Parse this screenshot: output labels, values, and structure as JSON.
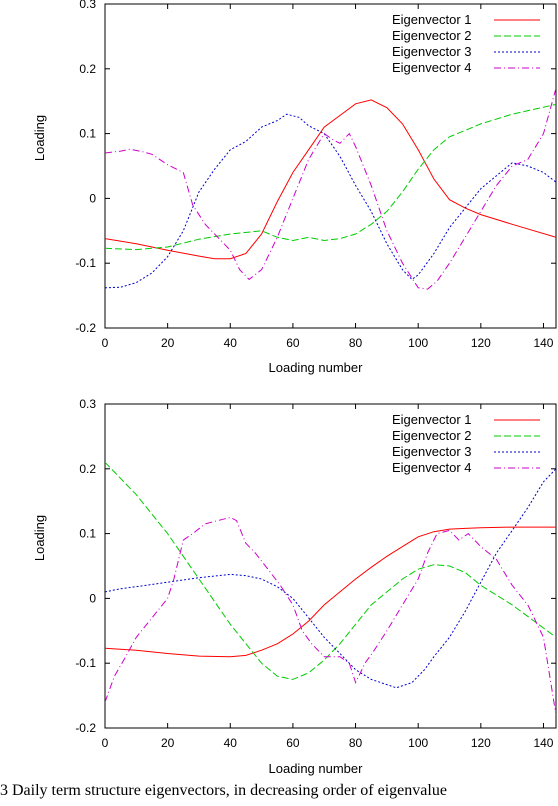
{
  "caption": "3    Daily term structure eigenvectors, in decreasing order of eigenvalue",
  "chart_data": [
    {
      "type": "line",
      "xlabel": "Loading number",
      "ylabel": "Loading",
      "xlim": [
        0,
        144
      ],
      "ylim": [
        -0.2,
        0.3
      ],
      "xticks": [
        0,
        20,
        40,
        60,
        80,
        100,
        120,
        140
      ],
      "yticks": [
        -0.2,
        -0.1,
        0,
        0.1,
        0.2,
        0.3
      ],
      "ytick_labels": [
        "-0.2",
        "-0.1",
        "0",
        "0.1",
        "0.2",
        "0.3"
      ],
      "legend_position": "top-right",
      "series": [
        {
          "name": "Eigenvector 1",
          "color": "#ff0000",
          "dash": "solid",
          "x": [
            0,
            10,
            20,
            30,
            35,
            40,
            45,
            50,
            55,
            60,
            65,
            70,
            75,
            80,
            85,
            90,
            95,
            100,
            105,
            110,
            115,
            120,
            130,
            144
          ],
          "y": [
            -0.062,
            -0.07,
            -0.08,
            -0.089,
            -0.093,
            -0.093,
            -0.085,
            -0.055,
            -0.005,
            0.04,
            0.075,
            0.11,
            0.128,
            0.146,
            0.152,
            0.14,
            0.115,
            0.075,
            0.03,
            -0.002,
            -0.015,
            -0.025,
            -0.04,
            -0.06
          ]
        },
        {
          "name": "Eigenvector 2",
          "color": "#00cc00",
          "dash": "dash",
          "x": [
            0,
            10,
            20,
            30,
            40,
            50,
            55,
            60,
            65,
            70,
            75,
            80,
            85,
            90,
            95,
            100,
            105,
            110,
            115,
            120,
            130,
            144
          ],
          "y": [
            -0.077,
            -0.079,
            -0.075,
            -0.063,
            -0.055,
            -0.05,
            -0.06,
            -0.065,
            -0.06,
            -0.065,
            -0.062,
            -0.055,
            -0.04,
            -0.02,
            0.01,
            0.045,
            0.075,
            0.095,
            0.105,
            0.115,
            0.13,
            0.145
          ]
        },
        {
          "name": "Eigenvector 3",
          "color": "#0000cc",
          "dash": "dot",
          "x": [
            0,
            5,
            10,
            15,
            20,
            25,
            30,
            35,
            40,
            45,
            50,
            55,
            58,
            62,
            65,
            70,
            75,
            80,
            85,
            90,
            95,
            98,
            100,
            105,
            110,
            115,
            120,
            125,
            130,
            135,
            140,
            144
          ],
          "y": [
            -0.138,
            -0.137,
            -0.13,
            -0.115,
            -0.09,
            -0.05,
            0.01,
            0.045,
            0.075,
            0.088,
            0.11,
            0.12,
            0.13,
            0.125,
            0.112,
            0.1,
            0.065,
            0.02,
            -0.02,
            -0.07,
            -0.11,
            -0.125,
            -0.118,
            -0.085,
            -0.045,
            -0.015,
            0.015,
            0.035,
            0.055,
            0.05,
            0.04,
            0.025
          ]
        },
        {
          "name": "Eigenvector 4",
          "color": "#cc00cc",
          "dash": "dashdot",
          "x": [
            0,
            5,
            8,
            12,
            15,
            20,
            25,
            28,
            32,
            36,
            40,
            43,
            46,
            50,
            55,
            60,
            65,
            70,
            73,
            75,
            78,
            80,
            85,
            90,
            95,
            100,
            103,
            106,
            110,
            115,
            120,
            125,
            130,
            135,
            140,
            144
          ],
          "y": [
            0.07,
            0.073,
            0.076,
            0.072,
            0.068,
            0.052,
            0.04,
            -0.01,
            -0.04,
            -0.06,
            -0.08,
            -0.11,
            -0.125,
            -0.11,
            -0.06,
            0.0,
            0.06,
            0.1,
            0.09,
            0.085,
            0.1,
            0.08,
            0.02,
            -0.05,
            -0.1,
            -0.138,
            -0.14,
            -0.128,
            -0.1,
            -0.06,
            -0.02,
            0.02,
            0.05,
            0.06,
            0.1,
            0.17
          ]
        }
      ]
    },
    {
      "type": "line",
      "xlabel": "Loading number",
      "ylabel": "Loading",
      "xlim": [
        0,
        144
      ],
      "ylim": [
        -0.2,
        0.3
      ],
      "xticks": [
        0,
        20,
        40,
        60,
        80,
        100,
        120,
        140
      ],
      "yticks": [
        -0.2,
        -0.1,
        0,
        0.1,
        0.2,
        0.3
      ],
      "ytick_labels": [
        "-0.2",
        "-0.1",
        "0",
        "0.1",
        "0.2",
        "0.3"
      ],
      "legend_position": "top-right",
      "series": [
        {
          "name": "Eigenvector 1",
          "color": "#ff0000",
          "dash": "solid",
          "x": [
            0,
            10,
            20,
            30,
            40,
            45,
            50,
            55,
            60,
            65,
            70,
            75,
            80,
            85,
            90,
            95,
            100,
            105,
            110,
            115,
            120,
            130,
            144
          ],
          "y": [
            -0.077,
            -0.08,
            -0.085,
            -0.089,
            -0.09,
            -0.088,
            -0.08,
            -0.07,
            -0.055,
            -0.035,
            -0.01,
            0.01,
            0.03,
            0.048,
            0.065,
            0.08,
            0.095,
            0.103,
            0.107,
            0.108,
            0.109,
            0.11,
            0.11
          ]
        },
        {
          "name": "Eigenvector 2",
          "color": "#00cc00",
          "dash": "dash",
          "x": [
            0,
            10,
            20,
            30,
            40,
            50,
            55,
            60,
            65,
            70,
            75,
            80,
            85,
            90,
            95,
            100,
            105,
            110,
            115,
            120,
            130,
            144
          ],
          "y": [
            0.21,
            0.16,
            0.1,
            0.03,
            -0.04,
            -0.1,
            -0.12,
            -0.125,
            -0.115,
            -0.095,
            -0.07,
            -0.04,
            -0.01,
            0.01,
            0.03,
            0.045,
            0.052,
            0.05,
            0.04,
            0.02,
            -0.01,
            -0.06
          ]
        },
        {
          "name": "Eigenvector 3",
          "color": "#0000cc",
          "dash": "dot",
          "x": [
            0,
            5,
            10,
            20,
            30,
            40,
            45,
            50,
            55,
            60,
            65,
            70,
            75,
            80,
            85,
            90,
            93,
            98,
            102,
            105,
            110,
            115,
            120,
            125,
            130,
            135,
            140,
            144
          ],
          "y": [
            0.01,
            0.015,
            0.018,
            0.025,
            0.032,
            0.037,
            0.035,
            0.03,
            0.018,
            0.0,
            -0.03,
            -0.06,
            -0.085,
            -0.11,
            -0.125,
            -0.133,
            -0.138,
            -0.13,
            -0.11,
            -0.09,
            -0.06,
            -0.02,
            0.025,
            0.07,
            0.105,
            0.14,
            0.18,
            0.2
          ]
        },
        {
          "name": "Eigenvector 4",
          "color": "#cc00cc",
          "dash": "dashdot",
          "x": [
            0,
            3,
            6,
            10,
            15,
            20,
            22,
            25,
            28,
            32,
            36,
            40,
            42,
            45,
            48,
            52,
            56,
            60,
            63,
            66,
            70,
            75,
            78,
            80,
            83,
            86,
            90,
            95,
            100,
            103,
            106,
            110,
            113,
            116,
            120,
            125,
            130,
            135,
            140,
            144
          ],
          "y": [
            -0.16,
            -0.12,
            -0.095,
            -0.06,
            -0.03,
            0.0,
            0.03,
            0.09,
            0.1,
            0.115,
            0.12,
            0.125,
            0.12,
            0.085,
            0.07,
            0.045,
            0.02,
            -0.01,
            -0.05,
            -0.07,
            -0.09,
            -0.09,
            -0.1,
            -0.13,
            -0.1,
            -0.08,
            -0.05,
            -0.01,
            0.03,
            0.07,
            0.1,
            0.105,
            0.09,
            0.1,
            0.08,
            0.06,
            0.02,
            -0.01,
            -0.06,
            -0.18
          ]
        }
      ]
    }
  ]
}
